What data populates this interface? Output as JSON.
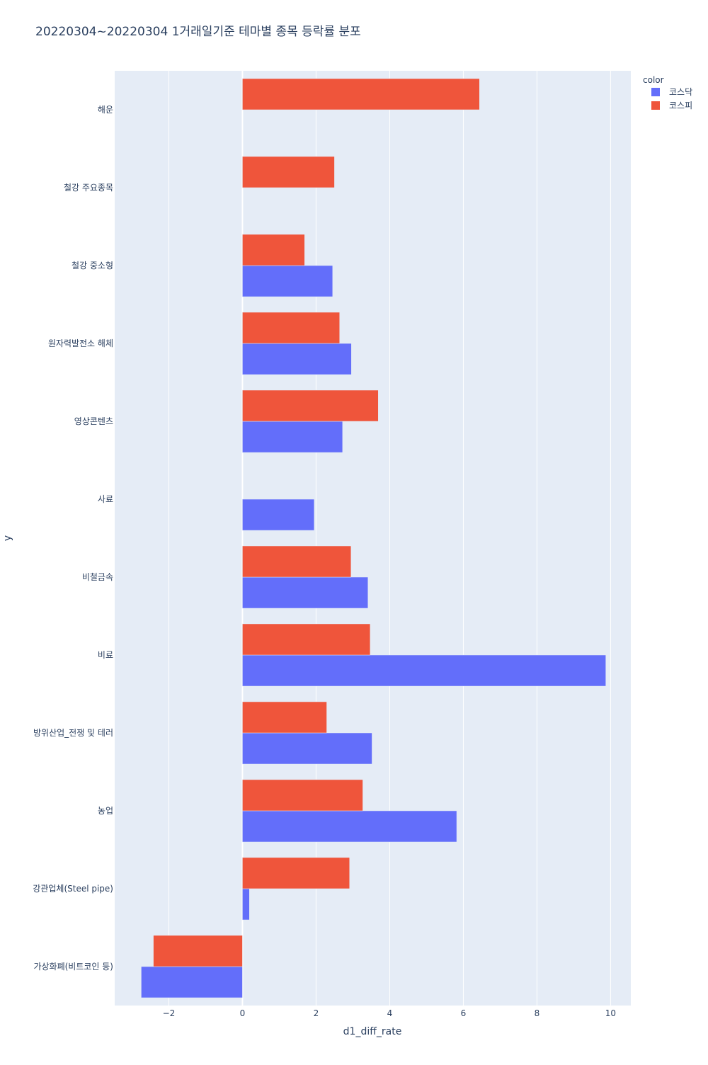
{
  "chart_data": {
    "type": "bar",
    "orientation": "horizontal",
    "barmode": "group",
    "title": "20220304~20220304 1거래일기준 테마별 종목 등락률 분포",
    "xlabel": "d1_diff_rate",
    "ylabel": "y",
    "xlim": [
      -3.47,
      10.55
    ],
    "x_ticks": [
      -2,
      0,
      2,
      4,
      6,
      8,
      10
    ],
    "x_tick_labels": [
      "−2",
      "0",
      "2",
      "4",
      "6",
      "8",
      "10"
    ],
    "grid": true,
    "categories": [
      "해운",
      "철강 주요종목",
      "철강 중소형",
      "원자력발전소 해체",
      "영상콘텐츠",
      "사료",
      "비철금속",
      "비료",
      "방위산업_전쟁 및 테러",
      "농업",
      "강관업체(Steel pipe)",
      "가상화폐(비트코인 등)"
    ],
    "legend": {
      "title": "color",
      "position": "top-right"
    },
    "series": [
      {
        "name": "코스닥",
        "color": "#636efa",
        "values": [
          null,
          null,
          2.45,
          2.96,
          2.72,
          1.95,
          3.41,
          9.87,
          3.52,
          5.82,
          0.19,
          -2.75
        ]
      },
      {
        "name": "코스피",
        "color": "#ef553b",
        "values": [
          6.44,
          2.5,
          1.69,
          2.64,
          3.69,
          null,
          2.95,
          3.47,
          2.29,
          3.27,
          2.91,
          -2.42
        ]
      }
    ]
  }
}
